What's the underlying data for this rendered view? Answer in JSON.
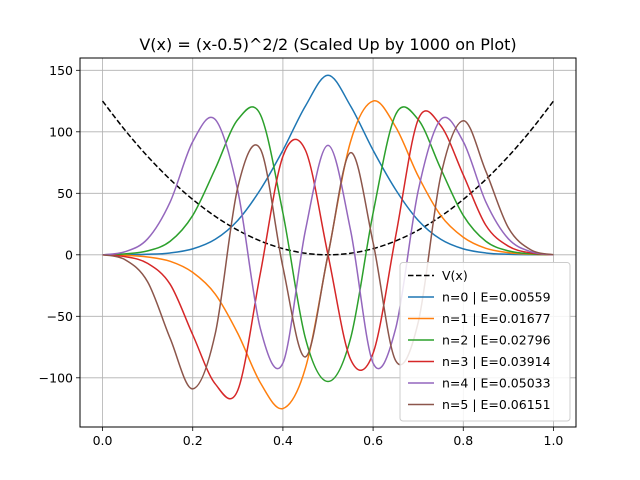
{
  "chart_data": {
    "type": "line",
    "title": "V(x) = (x-0.5)^2/2 (Scaled Up by 1000 on Plot)",
    "xlabel": "",
    "ylabel": "",
    "xlim": [
      -0.05,
      1.05
    ],
    "ylim": [
      -140,
      160
    ],
    "xticks": [
      0.0,
      0.2,
      0.4,
      0.6,
      0.8,
      1.0
    ],
    "xtick_labels": [
      "0.0",
      "0.2",
      "0.4",
      "0.6",
      "0.8",
      "1.0"
    ],
    "yticks": [
      -100,
      -50,
      0,
      50,
      100,
      150
    ],
    "ytick_labels": [
      "−100",
      "−50",
      "0",
      "50",
      "100",
      "150"
    ],
    "grid": true,
    "legend_position": "lower-right",
    "series": [
      {
        "name": "V(x)",
        "color": "#000000",
        "dash": true,
        "x": [
          0.0,
          0.05,
          0.1,
          0.15,
          0.2,
          0.25,
          0.3,
          0.35,
          0.4,
          0.45,
          0.5,
          0.55,
          0.6,
          0.65,
          0.7,
          0.75,
          0.8,
          0.85,
          0.9,
          0.95,
          1.0
        ],
        "y": [
          125,
          101.25,
          80,
          61.25,
          45,
          31.25,
          20,
          11.25,
          5,
          1.25,
          0,
          1.25,
          5,
          11.25,
          20,
          31.25,
          45,
          61.25,
          80,
          101.25,
          125
        ]
      },
      {
        "name": "n=0 | E=0.00559",
        "color": "#1f77b4",
        "x": [
          0.0,
          0.05,
          0.1,
          0.15,
          0.2,
          0.25,
          0.3,
          0.35,
          0.4,
          0.45,
          0.5,
          0.55,
          0.6,
          0.65,
          0.7,
          0.75,
          0.8,
          0.85,
          0.9,
          0.95,
          1.0
        ],
        "y": [
          0,
          0.1,
          0.4,
          1.5,
          4.8,
          12.6,
          28,
          53,
          85,
          121,
          146,
          121,
          85,
          53,
          28,
          12.6,
          4.8,
          1.5,
          0.4,
          0.1,
          0
        ]
      },
      {
        "name": "n=1 | E=0.01677",
        "color": "#ff7f0e",
        "x": [
          0.0,
          0.05,
          0.1,
          0.15,
          0.2,
          0.25,
          0.3,
          0.35,
          0.4,
          0.45,
          0.5,
          0.55,
          0.6,
          0.65,
          0.7,
          0.75,
          0.8,
          0.85,
          0.9,
          0.95,
          1.0
        ],
        "y": [
          0,
          -0.4,
          -1.8,
          -5.3,
          -14.3,
          -32,
          -64,
          -104,
          -125,
          -92,
          0,
          92,
          125,
          104,
          64,
          32,
          14.3,
          5.3,
          1.8,
          0.4,
          0
        ]
      },
      {
        "name": "n=2 | E=0.02796",
        "color": "#2ca02c",
        "x": [
          0.0,
          0.05,
          0.1,
          0.15,
          0.2,
          0.25,
          0.3,
          0.35,
          0.4,
          0.45,
          0.5,
          0.55,
          0.6,
          0.65,
          0.7,
          0.75,
          0.8,
          0.85,
          0.9,
          0.95,
          1.0
        ],
        "y": [
          0,
          0.8,
          3.2,
          11,
          32,
          70,
          110,
          114,
          34,
          -68,
          -103,
          -68,
          34,
          114,
          110,
          70,
          32,
          11,
          3.2,
          0.8,
          0
        ]
      },
      {
        "name": "n=3 | E=0.03914",
        "color": "#d62728",
        "x": [
          0.0,
          0.05,
          0.1,
          0.15,
          0.2,
          0.25,
          0.3,
          0.35,
          0.4,
          0.45,
          0.5,
          0.55,
          0.6,
          0.65,
          0.7,
          0.75,
          0.8,
          0.85,
          0.9,
          0.95,
          1.0
        ],
        "y": [
          0,
          -1.5,
          -7,
          -24,
          -65,
          -105,
          -110,
          -15,
          80,
          85,
          0,
          -85,
          -80,
          15,
          110,
          105,
          65,
          24,
          7,
          1.5,
          0
        ]
      },
      {
        "name": "n=4 | E=0.05033",
        "color": "#9467bd",
        "x": [
          0.0,
          0.05,
          0.1,
          0.15,
          0.2,
          0.25,
          0.3,
          0.35,
          0.4,
          0.45,
          0.5,
          0.55,
          0.6,
          0.65,
          0.7,
          0.75,
          0.8,
          0.85,
          0.9,
          0.95,
          1.0
        ],
        "y": [
          0,
          2.5,
          13,
          43,
          92,
          110,
          52,
          -60,
          -88,
          20,
          89,
          20,
          -88,
          -60,
          52,
          110,
          92,
          43,
          13,
          2.5,
          0
        ]
      },
      {
        "name": "n=5 | E=0.06151",
        "color": "#8c564b",
        "x": [
          0.0,
          0.05,
          0.1,
          0.15,
          0.2,
          0.25,
          0.3,
          0.35,
          0.4,
          0.45,
          0.5,
          0.55,
          0.6,
          0.65,
          0.7,
          0.75,
          0.8,
          0.85,
          0.9,
          0.95,
          1.0
        ],
        "y": [
          0,
          -4,
          -22,
          -68,
          -109,
          -64,
          55,
          86,
          -10,
          -83,
          0,
          83,
          10,
          -86,
          -55,
          64,
          109,
          68,
          22,
          4,
          0
        ]
      }
    ]
  }
}
